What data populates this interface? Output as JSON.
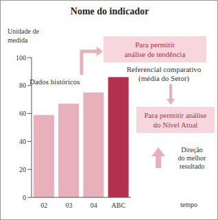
{
  "chart_data": {
    "type": "bar",
    "title": "Nome do indicador",
    "y_label": "Unidade de medida",
    "x_label": "tempo",
    "categories": [
      "02",
      "03",
      "04",
      "ABC"
    ],
    "values": [
      59,
      67,
      75,
      86
    ],
    "colors": [
      "#e8b0bb",
      "#e8b0bb",
      "#e8b0bb",
      "#b3304f"
    ],
    "ylim": [
      0,
      100
    ],
    "yticks": [
      0,
      20,
      40,
      60,
      80,
      100
    ],
    "grid": false,
    "annotations": [
      [
        "Dados históricos"
      ],
      [
        "Para permitir",
        "análise de tendência"
      ],
      [
        "Referencial comparativo",
        "(média do Setor)"
      ],
      [
        "Para permitir análise",
        "do Nível Atual"
      ],
      [
        "Direção",
        "do melhor",
        "resultado"
      ]
    ]
  }
}
